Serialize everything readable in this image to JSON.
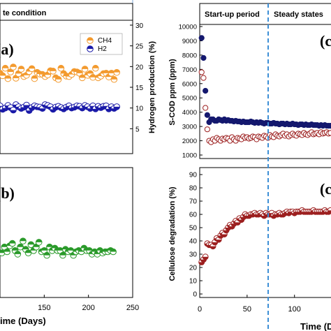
{
  "colors": {
    "ch4": "#f39a2e",
    "h2": "#1a1aa8",
    "green": "#2a9a2a",
    "scod_filled": "#14186e",
    "scod_open": "#9c1f1f",
    "degradation": "#9c1f1f",
    "divider": "#3d8fd6"
  },
  "left": {
    "header_text": "te condition",
    "panel_a": {
      "letter": "(a)",
      "right_axis_label": "Hydrogen production (%)",
      "right_ticks": [
        "5",
        "10",
        "15",
        "20",
        "25",
        "30"
      ],
      "legend": [
        "CH4",
        "H2"
      ]
    },
    "panel_b": {
      "letter": "(b)"
    },
    "x_ticks": [
      "150",
      "200",
      "250"
    ],
    "x_label": "ime (Days)"
  },
  "right": {
    "periods": {
      "startup": "Start-up period",
      "steady": "Steady states"
    },
    "panel_c": {
      "letter": "(c",
      "y_label": "S-COD ppm (ppm)",
      "y_ticks": [
        "1000",
        "2000",
        "3000",
        "4000",
        "5000",
        "6000",
        "7000",
        "8000",
        "9000",
        "10000"
      ]
    },
    "panel_d": {
      "letter": "(c",
      "y_label": "Cellulose degradation (%)",
      "y_ticks": [
        "0",
        "10",
        "20",
        "30",
        "40",
        "50",
        "60",
        "70",
        "80",
        "90"
      ]
    },
    "x_ticks": [
      "0",
      "50",
      "100"
    ],
    "x_label": "Time (Da"
  },
  "chart_data": [
    {
      "type": "scatter",
      "title": "(a)",
      "xlabel": "Time (Days)",
      "ylabel": "Hydrogen production (%)",
      "xlim": [
        100,
        250
      ],
      "ylim": [
        0,
        30
      ],
      "legend": [
        "CH4",
        "H2"
      ],
      "series": [
        {
          "name": "CH4",
          "x": [
            100,
            103,
            106,
            109,
            112,
            115,
            118,
            121,
            124,
            127,
            130,
            133,
            136,
            139,
            142,
            145,
            148,
            151,
            154,
            157,
            160,
            163,
            166,
            169,
            172,
            175,
            178,
            181,
            184,
            187,
            190,
            193,
            196,
            199,
            202,
            205,
            208,
            211,
            214,
            217,
            220,
            223,
            226,
            229,
            232
          ],
          "y": [
            18.4,
            17.8,
            19.6,
            17.1,
            18.7,
            19.9,
            17.2,
            18.3,
            19.4,
            17.6,
            17.9,
            18.8,
            19.5,
            17.1,
            18.6,
            18.2,
            18.1,
            17.6,
            18.0,
            19.0,
            18.9,
            17.3,
            16.9,
            19.6,
            18.3,
            17.7,
            17.6,
            18.1,
            18.8,
            18.7,
            18.4,
            17.3,
            19.4,
            17.9,
            18.3,
            17.4,
            19.6,
            17.3,
            17.7,
            18.3,
            18.4,
            17.5,
            18.4,
            16.9,
            18.6
          ]
        },
        {
          "name": "H2",
          "x": [
            100,
            103,
            106,
            109,
            112,
            115,
            118,
            121,
            124,
            127,
            130,
            133,
            136,
            139,
            142,
            145,
            148,
            151,
            154,
            157,
            160,
            163,
            166,
            169,
            172,
            175,
            178,
            181,
            184,
            187,
            190,
            193,
            196,
            199,
            202,
            205,
            208,
            211,
            214,
            217,
            220,
            223,
            226,
            229,
            232
          ],
          "y": [
            10.5,
            9.7,
            10.0,
            10.6,
            10.1,
            9.5,
            10.8,
            10.3,
            9.9,
            10.2,
            10.7,
            9.4,
            10.1,
            10.5,
            10.3,
            10.2,
            9.9,
            10.8,
            10.6,
            10.3,
            9.7,
            10.2,
            10.4,
            10.1,
            9.8,
            10.2,
            10.5,
            10.0,
            10.2,
            10.5,
            10.4,
            10.0,
            10.6,
            10.3,
            9.9,
            10.5,
            9.8,
            10.4,
            10.1,
            10.4,
            10.5,
            9.8,
            10.3,
            9.9,
            10.3
          ]
        }
      ]
    },
    {
      "type": "scatter",
      "title": "(b)",
      "xlabel": "Time (Days)",
      "xlim": [
        100,
        250
      ],
      "ylim": [
        0,
        10
      ],
      "series": [
        {
          "x": [
            102,
            105,
            108,
            111,
            114,
            117,
            120,
            123,
            126,
            129,
            132,
            135,
            138,
            141,
            144,
            147,
            150,
            153,
            156,
            159,
            162,
            165,
            168,
            171,
            174,
            177,
            180,
            183,
            186,
            189,
            192,
            195,
            198,
            201,
            204,
            207,
            210,
            213,
            216,
            219,
            222,
            225,
            228
          ],
          "y": [
            3.4,
            3.9,
            3.5,
            4.0,
            4.2,
            3.6,
            3.3,
            3.9,
            4.4,
            3.7,
            3.4,
            4.1,
            3.6,
            3.9,
            4.3,
            3.5,
            3.6,
            3.2,
            3.9,
            3.6,
            3.8,
            3.6,
            3.6,
            3.2,
            3.7,
            3.5,
            3.6,
            3.2,
            3.5,
            3.6,
            3.5,
            3.8,
            3.6,
            3.6,
            3.3,
            3.5,
            3.3,
            3.6,
            3.4,
            3.5,
            3.5,
            3.6,
            3.5
          ]
        }
      ]
    },
    {
      "type": "scatter",
      "title": "(c",
      "xlabel": "Time (Days)",
      "ylabel": "S-COD ppm (ppm)",
      "xlim": [
        0,
        140
      ],
      "ylim": [
        1000,
        10000
      ],
      "annotations": [
        "Start-up period",
        "Steady states"
      ],
      "series": [
        {
          "x": [
            2,
            4,
            6,
            8,
            10,
            12,
            14,
            16,
            18,
            20,
            22,
            24,
            26,
            28,
            30,
            32,
            34,
            36,
            38,
            40,
            42,
            44,
            46,
            48,
            50,
            52,
            54,
            56,
            58,
            60,
            62,
            64,
            66,
            68,
            70,
            72,
            74,
            76,
            78,
            80,
            82,
            84,
            86,
            88,
            90,
            92,
            94,
            96,
            98,
            100,
            102,
            104,
            106,
            108,
            110,
            112,
            114,
            116,
            118,
            120,
            122,
            124,
            126,
            128,
            130,
            132,
            134,
            136,
            138
          ],
          "y": [
            9200,
            7800,
            5500,
            3800,
            3300,
            3500,
            3500,
            3400,
            3400,
            3500,
            3450,
            3400,
            3500,
            3400,
            3450,
            3400,
            3400,
            3350,
            3400,
            3350,
            3350,
            3300,
            3350,
            3300,
            3300,
            3300,
            3350,
            3300,
            3250,
            3300,
            3250,
            3300,
            3250,
            3200,
            3250,
            3250,
            3200,
            3200,
            3250,
            3200,
            3200,
            3150,
            3200,
            3200,
            3150,
            3200,
            3150,
            3150,
            3200,
            3150,
            3150,
            3100,
            3150,
            3150,
            3100,
            3150,
            3100,
            3100,
            3150,
            3100,
            3100,
            3100,
            3050,
            3100,
            3050,
            3100,
            3050,
            3050,
            3050
          ]
        },
        {
          "x": [
            2,
            4,
            6,
            8,
            10,
            12,
            14,
            16,
            18,
            20,
            22,
            24,
            26,
            28,
            30,
            32,
            34,
            36,
            38,
            40,
            42,
            44,
            46,
            48,
            50,
            52,
            54,
            56,
            58,
            60,
            62,
            64,
            66,
            68,
            70,
            72,
            74,
            76,
            78,
            80,
            82,
            84,
            86,
            88,
            90,
            92,
            94,
            96,
            98,
            100,
            102,
            104,
            106,
            108,
            110,
            112,
            114,
            116,
            118,
            120,
            122,
            124,
            126,
            128,
            130,
            132,
            134,
            136,
            138
          ],
          "y": [
            6800,
            6400,
            4300,
            2800,
            2000,
            1900,
            2100,
            2000,
            2200,
            2100,
            2000,
            2150,
            2100,
            2200,
            2150,
            2000,
            2250,
            2100,
            2000,
            2200,
            2150,
            2100,
            2300,
            2200,
            2250,
            2150,
            2200,
            2300,
            2250,
            2100,
            2300,
            2250,
            2200,
            2350,
            2300,
            2200,
            2400,
            2300,
            2250,
            2450,
            2350,
            2300,
            2400,
            2500,
            2350,
            2450,
            2300,
            2400,
            2500,
            2400,
            2350,
            2500,
            2450,
            2400,
            2550,
            2450,
            2400,
            2500,
            2600,
            2450,
            2500,
            2550,
            2450,
            2600,
            2500,
            2550,
            2600,
            2500,
            2550
          ]
        }
      ]
    },
    {
      "type": "scatter",
      "title": "(c",
      "xlabel": "Time (Days)",
      "ylabel": "Cellulose degradation (%)",
      "xlim": [
        0,
        140
      ],
      "ylim": [
        0,
        90
      ],
      "series": [
        {
          "x": [
            2,
            4,
            6,
            8,
            10,
            12,
            14,
            16,
            18,
            20,
            22,
            24,
            26,
            28,
            30,
            32,
            34,
            36,
            38,
            40,
            42,
            44,
            46,
            48,
            50,
            52,
            54,
            56,
            58,
            60,
            62,
            64,
            66,
            68,
            70,
            72,
            74,
            76,
            78,
            80,
            82,
            84,
            86,
            88,
            90,
            92,
            94,
            96,
            98,
            100,
            102,
            104,
            106,
            108,
            110,
            112,
            114,
            116,
            118,
            120,
            122,
            124,
            126,
            128,
            130,
            132,
            134,
            136,
            138
          ],
          "y": [
            24,
            26,
            28,
            38,
            37,
            37,
            36,
            39,
            42,
            41,
            44,
            46,
            45,
            48,
            50,
            52,
            51,
            53,
            55,
            54,
            57,
            56,
            58,
            60,
            59,
            59,
            60,
            60,
            61,
            60,
            60,
            61,
            60,
            59,
            61,
            60,
            60,
            61,
            59,
            60,
            60,
            61,
            60,
            60,
            61,
            62,
            61,
            62,
            62,
            61,
            62,
            62,
            62,
            63,
            62,
            62,
            62,
            62,
            62,
            63,
            62,
            62,
            62,
            62,
            62,
            63,
            62,
            62,
            63
          ]
        }
      ]
    }
  ]
}
